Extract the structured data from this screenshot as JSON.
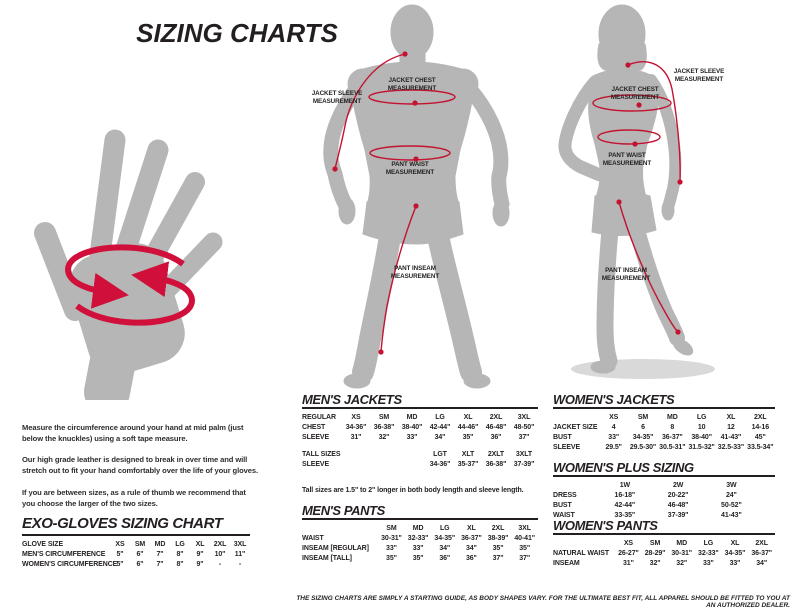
{
  "title": "SIZING CHARTS",
  "colors": {
    "accent_red": "#c41230",
    "silhouette_gray": "#b5b6b5",
    "text_dark": "#231f20"
  },
  "intro": {
    "p1": "Measure the circumference around your hand at mid palm (just below the knuckles) using a soft tape measure.",
    "p2": "Our high grade leather is designed to break in over time and will stretch out to fit your hand comfortably over the life of your gloves.",
    "p3": "If you are between sizes, as a rule of thumb we recommend that you choose the larger of the two sizes."
  },
  "figures": {
    "male": {
      "sleeve_label": "JACKET SLEEVE MEASUREMENT",
      "chest_label": "JACKET CHEST MEASUREMENT",
      "waist_label": "PANT WAIST MEASUREMENT",
      "inseam_label": "PANT INSEAM MEASUREMENT"
    },
    "female": {
      "sleeve_label": "JACKET SLEEVE MEASUREMENT",
      "chest_label": "JACKET CHEST MEASUREMENT",
      "waist_label": "PANT WAIST MEASUREMENT",
      "inseam_label": "PANT INSEAM MEASUREMENT"
    }
  },
  "sections": {
    "exo_gloves": {
      "heading": "EXO-GLOVES SIZING CHART"
    },
    "mens_jackets": {
      "heading": "MEN'S JACKETS",
      "note": "Tall sizes are 1.5\" to 2\" longer in both body length and sleeve length."
    },
    "mens_pants": {
      "heading": "MEN'S PANTS"
    },
    "womens_jackets": {
      "heading": "WOMEN'S JACKETS"
    },
    "womens_plus": {
      "heading": "WOMEN'S PLUS SIZING"
    },
    "womens_pants": {
      "heading": "WOMEN'S PANTS"
    }
  },
  "tables": {
    "exo_gloves": {
      "rows": [
        {
          "label": "GLOVE SIZE",
          "cells": [
            "XS",
            "SM",
            "MD",
            "LG",
            "XL",
            "2XL",
            "3XL"
          ]
        },
        {
          "label": "MEN'S CIRCUMFERENCE",
          "cells": [
            "5\"",
            "6\"",
            "7\"",
            "8\"",
            "9\"",
            "10\"",
            "11\""
          ]
        },
        {
          "label": "WOMEN'S CIRCUMFERENCE",
          "cells": [
            "5\"",
            "6\"",
            "7\"",
            "8\"",
            "9\"",
            "-",
            "-"
          ]
        }
      ]
    },
    "mens_jackets": {
      "rows": [
        {
          "label": "REGULAR",
          "cells": [
            "XS",
            "SM",
            "MD",
            "LG",
            "XL",
            "2XL",
            "3XL"
          ]
        },
        {
          "label": "CHEST",
          "cells": [
            "34-36\"",
            "36-38\"",
            "38-40\"",
            "42-44\"",
            "44-46\"",
            "46-48\"",
            "48-50\""
          ]
        },
        {
          "label": "SLEEVE",
          "cells": [
            "31\"",
            "32\"",
            "33\"",
            "34\"",
            "35\"",
            "36\"",
            "37\""
          ]
        },
        {
          "label": "",
          "cells": [
            "",
            "",
            "",
            "",
            "",
            "",
            ""
          ],
          "gap": true
        },
        {
          "label": "TALL SIZES",
          "cells": [
            "",
            "",
            "",
            "LGT",
            "XLT",
            "2XLT",
            "3XLT"
          ]
        },
        {
          "label": "SLEEVE",
          "cells": [
            "",
            "",
            "",
            "34-36\"",
            "35-37\"",
            "36-38\"",
            "37-39\""
          ]
        }
      ]
    },
    "mens_pants": {
      "rows": [
        {
          "label": "",
          "cells": [
            "SM",
            "MD",
            "LG",
            "XL",
            "2XL",
            "3XL"
          ]
        },
        {
          "label": "WAIST",
          "cells": [
            "30-31\"",
            "32-33\"",
            "34-35\"",
            "36-37\"",
            "38-39\"",
            "40-41\""
          ]
        },
        {
          "label": "INSEAM [REGULAR]",
          "cells": [
            "33\"",
            "33\"",
            "34\"",
            "34\"",
            "35\"",
            "35\""
          ]
        },
        {
          "label": "INSEAM [TALL]",
          "cells": [
            "35\"",
            "35\"",
            "36\"",
            "36\"",
            "37\"",
            "37\""
          ]
        }
      ]
    },
    "womens_jackets": {
      "rows": [
        {
          "label": "",
          "cells": [
            "XS",
            "SM",
            "MD",
            "LG",
            "XL",
            "2XL"
          ]
        },
        {
          "label": "JACKET SIZE",
          "cells": [
            "4",
            "6",
            "8",
            "10",
            "12",
            "14-16"
          ]
        },
        {
          "label": "BUST",
          "cells": [
            "33\"",
            "34-35\"",
            "36-37\"",
            "38-40\"",
            "41-43\"",
            "45\""
          ]
        },
        {
          "label": "SLEEVE",
          "cells": [
            "29.5\"",
            "29.5-30\"",
            "30.5-31\"",
            "31.5-32\"",
            "32.5-33\"",
            "33.5-34\""
          ]
        }
      ]
    },
    "womens_plus": {
      "rows": [
        {
          "label": "",
          "cells": [
            "1W",
            "2W",
            "3W"
          ]
        },
        {
          "label": "DRESS",
          "cells": [
            "16-18\"",
            "20-22\"",
            "24\""
          ]
        },
        {
          "label": "BUST",
          "cells": [
            "42-44\"",
            "46-48\"",
            "50-52\""
          ]
        },
        {
          "label": "WAIST",
          "cells": [
            "33-35\"",
            "37-39\"",
            "41-43\""
          ]
        }
      ]
    },
    "womens_pants": {
      "rows": [
        {
          "label": "",
          "cells": [
            "XS",
            "SM",
            "MD",
            "LG",
            "XL",
            "2XL"
          ]
        },
        {
          "label": "NATURAL WAIST",
          "cells": [
            "26-27\"",
            "28-29\"",
            "30-31\"",
            "32-33\"",
            "34-35\"",
            "36-37\""
          ]
        },
        {
          "label": "INSEAM",
          "cells": [
            "31\"",
            "32\"",
            "32\"",
            "33\"",
            "33\"",
            "34\""
          ]
        }
      ]
    }
  },
  "footer": "THE SIZING CHARTS ARE SIMPLY A STARTING GUIDE, AS BODY SHAPES VARY. FOR THE ULTIMATE BEST FIT, ALL APPAREL SHOULD BE FITTED TO YOU AT AN AUTHORIZED DEALER."
}
